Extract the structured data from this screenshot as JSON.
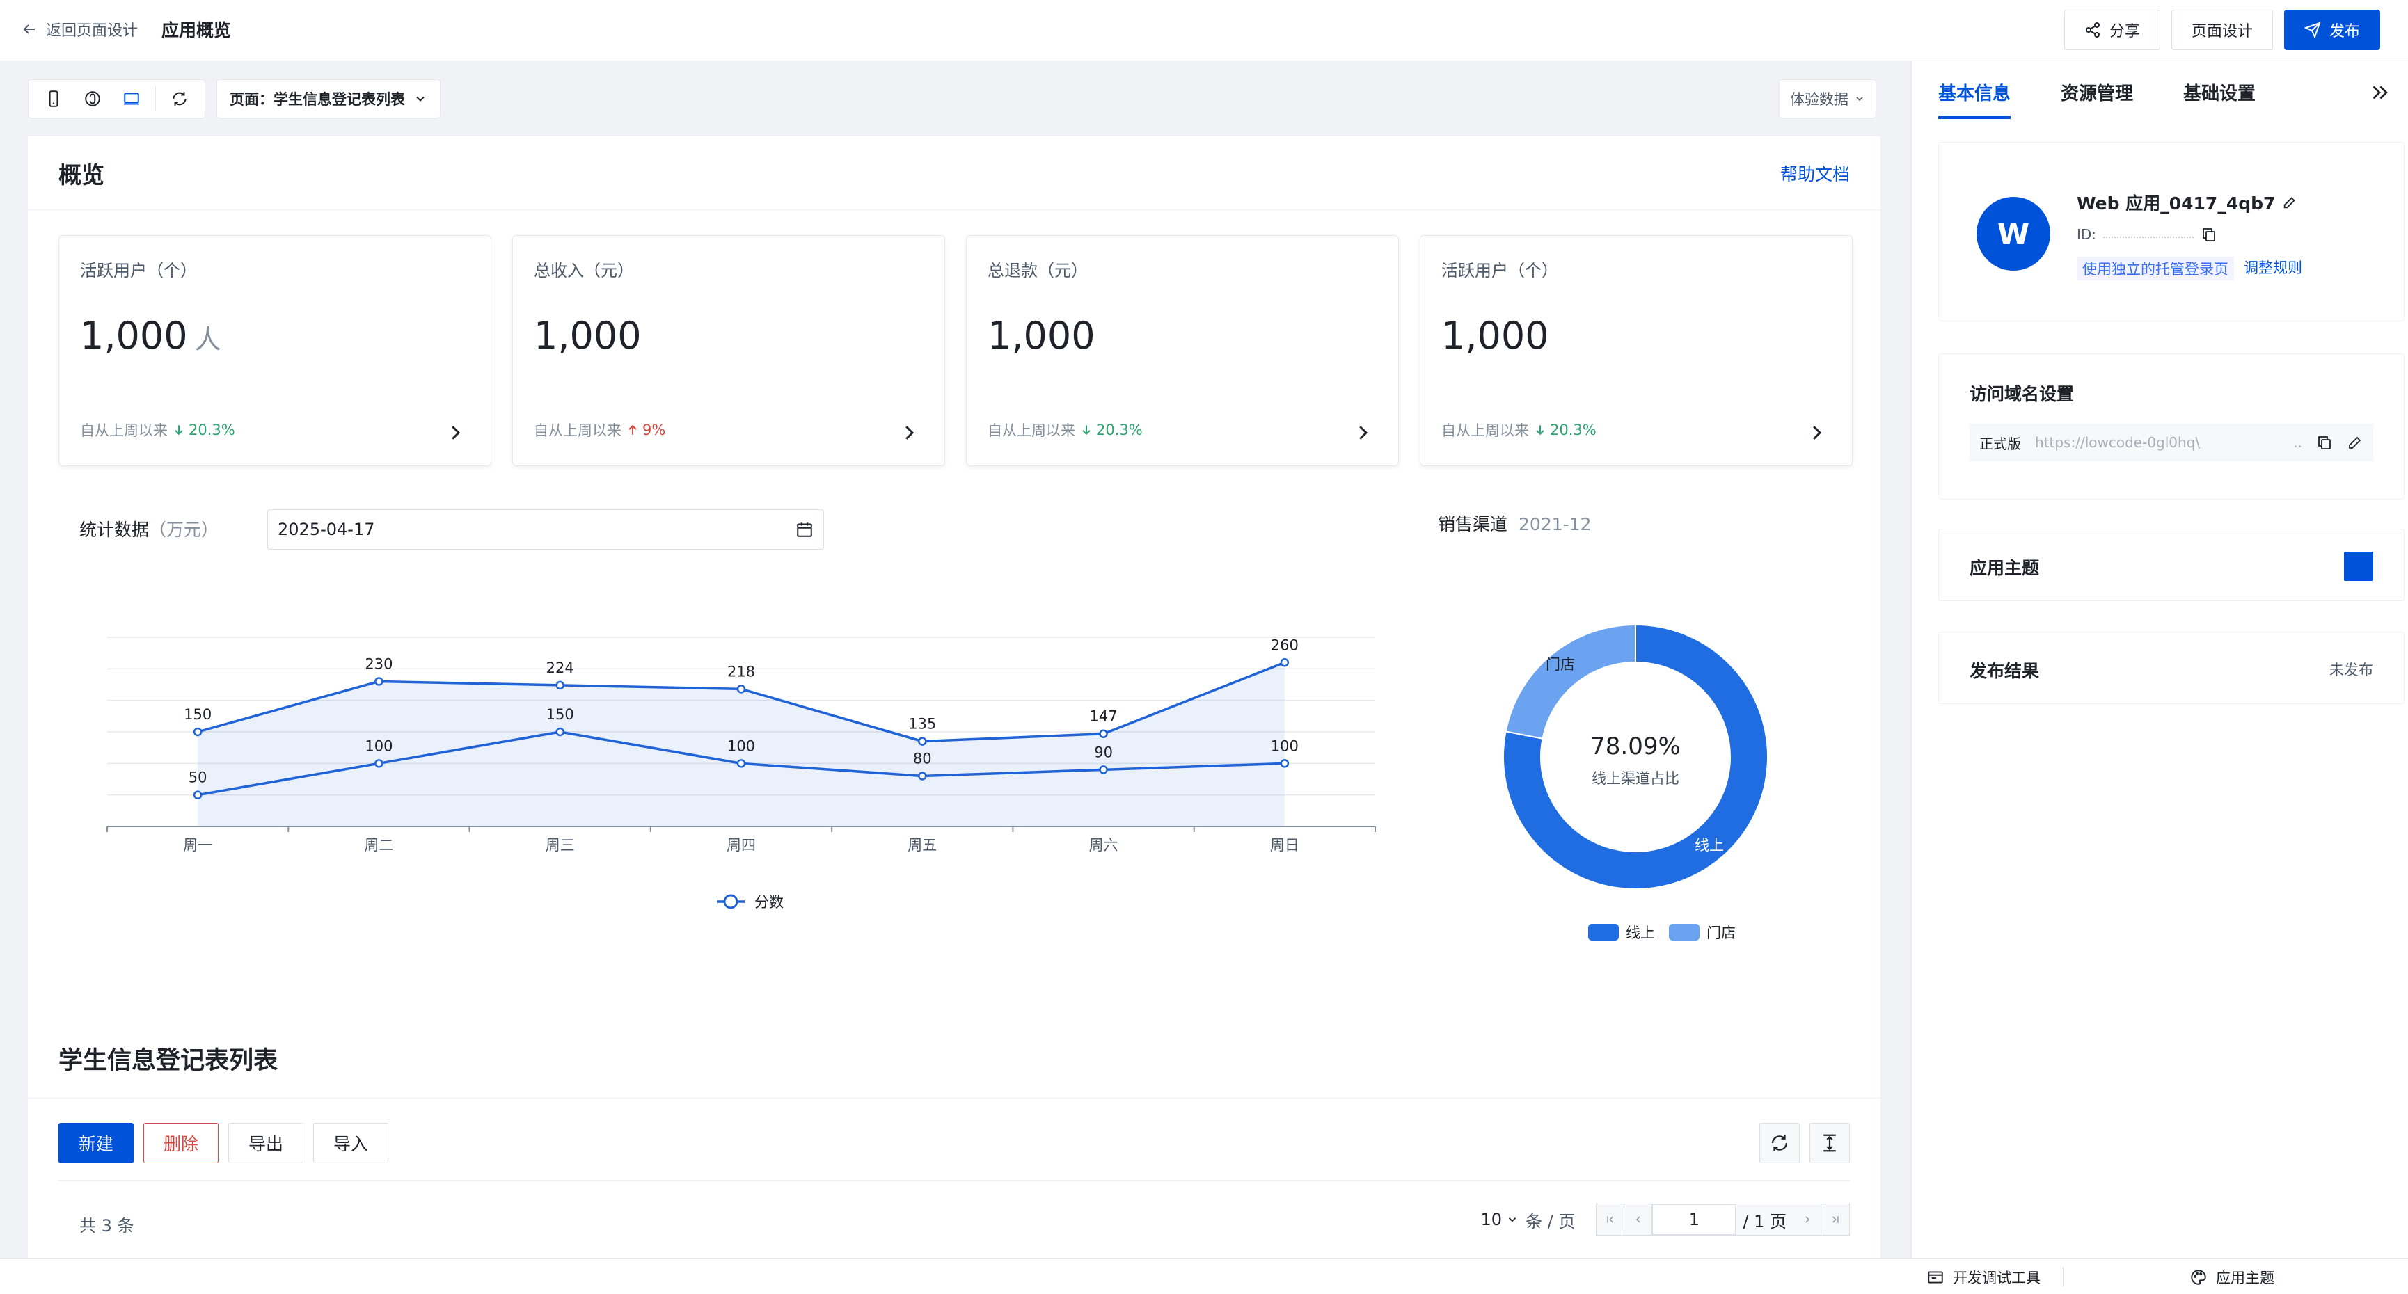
{
  "topbar": {
    "back_label": "返回页面设计",
    "title": "应用概览",
    "share_label": "分享",
    "page_design_label": "页面设计",
    "publish_label": "发布"
  },
  "canvas": {
    "page_select_label": "页面：学生信息登记表列表",
    "exp_data_label": "体验数据"
  },
  "overview": {
    "title": "概览",
    "help_label": "帮助文档",
    "stats": [
      {
        "label": "活跃用户（个）",
        "value": "1,000",
        "unit": "人",
        "since": "自从上周以来",
        "trend": "20.3%",
        "direction": "down"
      },
      {
        "label": "总收入（元）",
        "value": "1,000",
        "unit": "",
        "since": "自从上周以来",
        "trend": "9%",
        "direction": "up"
      },
      {
        "label": "总退款（元）",
        "value": "1,000",
        "unit": "",
        "since": "自从上周以来",
        "trend": "20.3%",
        "direction": "down"
      },
      {
        "label": "活跃用户（个）",
        "value": "1,000",
        "unit": "",
        "since": "自从上周以来",
        "trend": "20.3%",
        "direction": "down"
      }
    ],
    "stats_label": "统计数据",
    "stats_unit": "（万元）",
    "date_value": "2025-04-17",
    "pie_title": "销售渠道",
    "pie_period": "2021-12"
  },
  "chart_data": [
    {
      "type": "line",
      "categories": [
        "周一",
        "周二",
        "周三",
        "周四",
        "周五",
        "周六",
        "周日"
      ],
      "series": [
        {
          "name": "",
          "values": [
            150,
            230,
            224,
            218,
            135,
            147,
            260
          ],
          "area": true
        },
        {
          "name": "分数",
          "values": [
            50,
            100,
            150,
            100,
            80,
            90,
            100
          ]
        }
      ],
      "ylim": [
        0,
        300
      ],
      "legend": "bottom",
      "grid": true,
      "color": "#1f63d6"
    },
    {
      "type": "pie",
      "donut": true,
      "center_value": "78.09%",
      "center_label": "线上渠道占比",
      "slices": [
        {
          "name": "线上",
          "value": 78.09,
          "color": "#1f6de0"
        },
        {
          "name": "门店",
          "value": 21.91,
          "color": "#6ba3f0"
        }
      ],
      "legend": "bottom"
    }
  ],
  "table": {
    "title": "学生信息登记表列表",
    "new_label": "新建",
    "delete_label": "删除",
    "export_label": "导出",
    "import_label": "导入",
    "total_label": "共 3 条",
    "page_size": "10",
    "page_size_unit": "条 / 页",
    "current_page": "1",
    "total_pages": "/ 1 页"
  },
  "right_panel": {
    "tabs": [
      "基本信息",
      "资源管理",
      "基础设置"
    ],
    "app_initial": "W",
    "app_name": "Web 应用_0417_4qb7",
    "id_label": "ID:",
    "login_tag": "使用独立的托管登录页",
    "adjust_label": "调整规则",
    "domain_title": "访问域名设置",
    "domain_env": "正式版",
    "domain_url": "https://lowcode-0gl0hq\\",
    "domain_ellipsis": "..",
    "theme_title": "应用主题",
    "theme_color": "#0052d9",
    "publish_title": "发布结果",
    "publish_status": "未发布"
  },
  "bottombar": {
    "devtools_label": "开发调试工具",
    "theme_label": "应用主题"
  }
}
